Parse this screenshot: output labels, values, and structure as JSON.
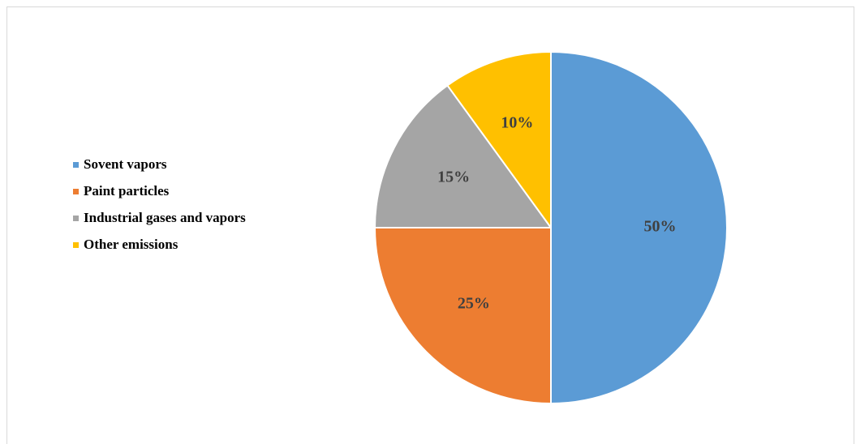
{
  "chart_data": {
    "type": "pie",
    "categories": [
      "Sovent vapors",
      "Paint particles",
      "Industrial gases and vapors",
      "Other emissions"
    ],
    "values": [
      50,
      25,
      15,
      10
    ],
    "data_labels": [
      "50%",
      "25%",
      "15%",
      "10%"
    ],
    "colors": [
      "#5b9bd5",
      "#ed7d31",
      "#a5a5a5",
      "#ffc000"
    ],
    "start_angle_deg": 0,
    "direction": "clockwise",
    "slice_border_color": "#ffffff",
    "legend_position": "left",
    "data_label_color": "#404040"
  }
}
